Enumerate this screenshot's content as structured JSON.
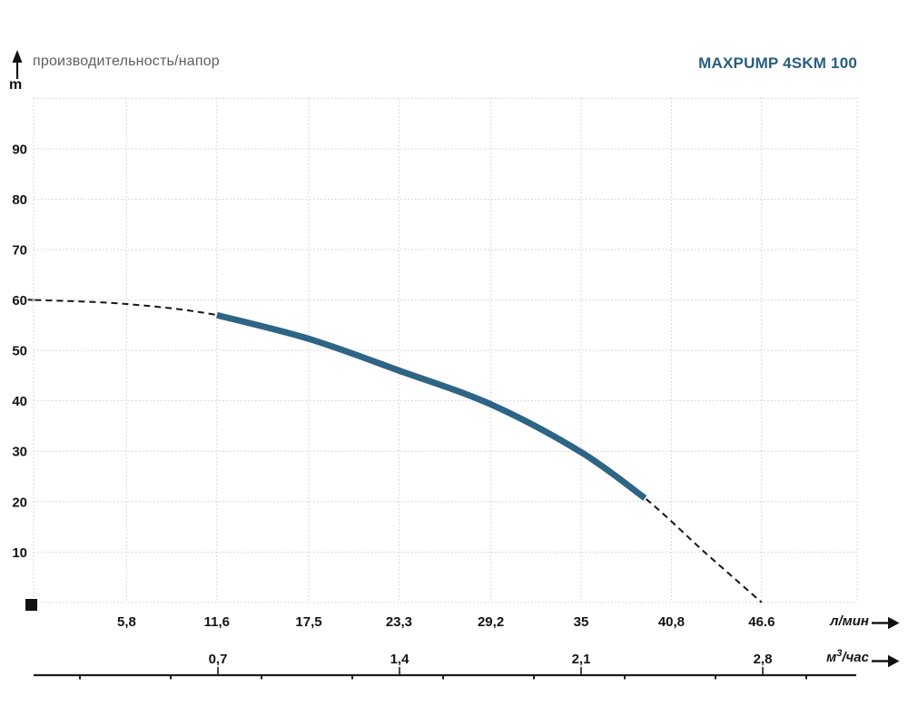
{
  "page": {
    "title": "производительность/напор",
    "y_axis_unit": "m",
    "model": "MAXPUMP 4SKM 100",
    "x1_unit": "л/мин",
    "x2_unit": {
      "prefix": "м",
      "sup": "3",
      "suffix": "/час"
    }
  },
  "colors": {
    "curve_solid": "#2e6485",
    "curve_dashed": "#161616",
    "brand_text": "#275e7e",
    "title_text": "#5f5f5f",
    "grid": "#cdcdcd",
    "axis_text": "#141414",
    "axis_line": "#1c1c1c"
  },
  "chart_data": {
    "type": "line",
    "title": "производительность/напор",
    "model": "MAXPUMP 4SKM 100",
    "y_unit": "m",
    "ylabel": "m",
    "ylim": [
      0,
      100
    ],
    "y_ticks": [
      10,
      20,
      30,
      40,
      50,
      60,
      70,
      80,
      90
    ],
    "grid": "dotted",
    "x_unit_primary": "л/мин",
    "x_ticks_lmin": {
      "labels": [
        "5,8",
        "11,6",
        "17,5",
        "23,3",
        "29,2",
        "35",
        "40,8",
        "46.6"
      ],
      "values": [
        5.8,
        11.6,
        17.5,
        23.3,
        29.2,
        35,
        40.8,
        46.6
      ]
    },
    "x_unit_secondary": "м³/час",
    "x_ticks_m3h": {
      "labels": [
        "0,7",
        "1,4",
        "2,1",
        "2,8"
      ],
      "values": [
        0.7,
        1.4,
        2.1,
        2.8
      ]
    },
    "xlim_lmin": [
      0,
      52.8
    ],
    "curve": {
      "name": "MAXPUMP 4SKM 100 H(Q)",
      "points_lmin_m": [
        [
          -0.2,
          60.0
        ],
        [
          0,
          60.0
        ],
        [
          5.8,
          59.2
        ],
        [
          11.6,
          57.0
        ],
        [
          17.5,
          52.3
        ],
        [
          23.3,
          46.0
        ],
        [
          29.2,
          39.3
        ],
        [
          35,
          29.8
        ],
        [
          39.1,
          20.7
        ],
        [
          43,
          9.8
        ],
        [
          46.6,
          0
        ]
      ],
      "solid_range_lmin": [
        11.6,
        39.1
      ],
      "dashed_ranges_lmin": [
        [
          -0.2,
          11.6
        ],
        [
          39.1,
          46.6
        ]
      ]
    }
  }
}
